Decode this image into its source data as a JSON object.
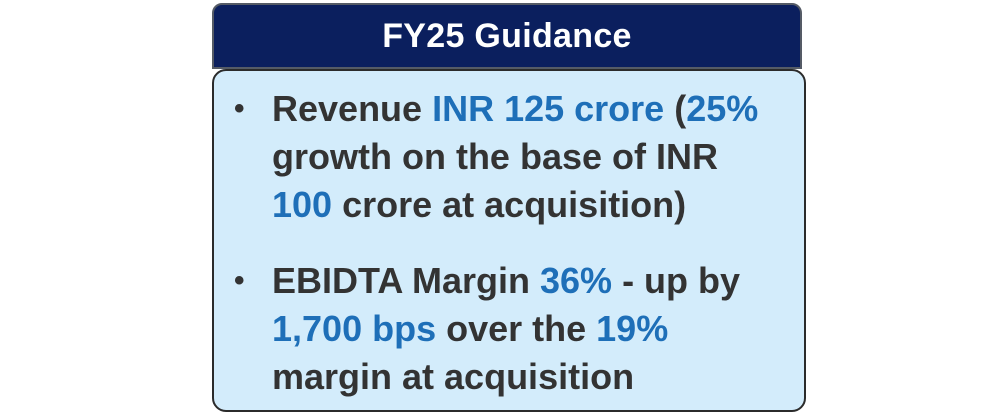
{
  "header": {
    "title": "FY25 Guidance"
  },
  "bullets": [
    {
      "parts": [
        "Revenue ",
        "INR 125 crore",
        " (",
        "25%",
        " growth on the base of INR ",
        "100",
        " crore at acquisition)"
      ]
    },
    {
      "parts": [
        "EBIDTA Margin ",
        "36%",
        " - up by ",
        "1,700 bps",
        " over the ",
        "19%",
        " margin at acquisition"
      ]
    }
  ],
  "colors": {
    "header_bg": "#0b1f5e",
    "card_bg": "#d3ecfb",
    "highlight": "#1e6fb8",
    "body_text": "#333333"
  }
}
